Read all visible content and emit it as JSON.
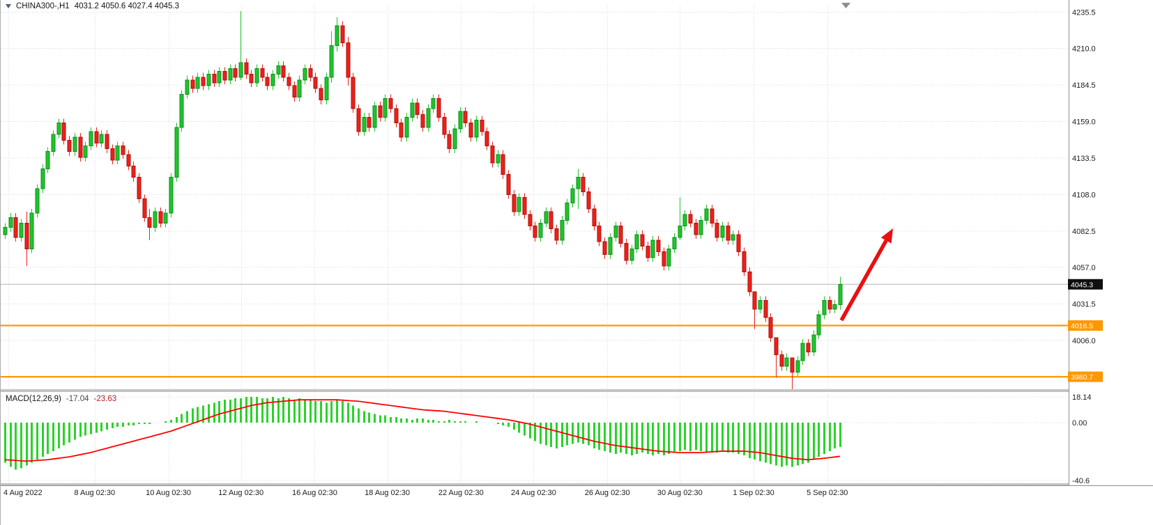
{
  "header": {
    "title": "CHINA300-,H1",
    "ohlc": "4031.2 4050.6 4027.4 4045.3"
  },
  "indicator": {
    "label": "MACD(12,26,9)",
    "macd_value": "-17.04",
    "signal_value": "-23.63"
  },
  "colors": {
    "bull": "#1fc42c",
    "bull_stroke": "#0e8f18",
    "bear": "#ee2019",
    "bear_stroke": "#a8120d",
    "macd_bar": "#2ad32a",
    "signal": "#ff0000",
    "level": "#ff9800",
    "current_badge": "#101010",
    "current_line": "#b4b4b4",
    "arrow": "#e81010",
    "separator": "#c3c3c3"
  },
  "chart_data": {
    "type": "candlestick",
    "title": "CHINA300- H1 with MACD(12,26,9)",
    "legend_position": "none",
    "grid": true,
    "main": {
      "ylim": [
        3972,
        4240
      ],
      "grid_top": 4235.5,
      "grid_step": 25.5,
      "price_ticks": [
        "4235.5",
        "4210.0",
        "4184.5",
        "4159.0",
        "4133.5",
        "4108.0",
        "4082.5",
        "4057.0",
        "4031.5",
        "4006.0"
      ],
      "current_price": "4045.3",
      "open_first": 4080,
      "closes": [
        4085,
        4092,
        4078,
        4088,
        4070,
        4095,
        4112,
        4126,
        4138,
        4150,
        4158,
        4146,
        4138,
        4148,
        4134,
        4142,
        4152,
        4144,
        4150,
        4140,
        4132,
        4142,
        4136,
        4128,
        4120,
        4105,
        4092,
        4085,
        4096,
        4088,
        4095,
        4120,
        4155,
        4178,
        4188,
        4182,
        4190,
        4184,
        4192,
        4186,
        4194,
        4188,
        4196,
        4190,
        4200,
        4192,
        4186,
        4196,
        4190,
        4184,
        4192,
        4198,
        4190,
        4184,
        4176,
        4188,
        4196,
        4190,
        4182,
        4174,
        4190,
        4212,
        4226,
        4214,
        4190,
        4168,
        4152,
        4162,
        4155,
        4170,
        4162,
        4175,
        4168,
        4158,
        4148,
        4162,
        4172,
        4164,
        4155,
        4168,
        4175,
        4162,
        4150,
        4140,
        4154,
        4166,
        4158,
        4148,
        4160,
        4152,
        4142,
        4130,
        4136,
        4122,
        4108,
        4096,
        4106,
        4094,
        4086,
        4078,
        4088,
        4096,
        4084,
        4076,
        4090,
        4102,
        4112,
        4120,
        4110,
        4098,
        4086,
        4075,
        4066,
        4078,
        4086,
        4074,
        4062,
        4070,
        4080,
        4072,
        4064,
        4076,
        4068,
        4058,
        4070,
        4078,
        4086,
        4094,
        4088,
        4080,
        4090,
        4098,
        4088,
        4078,
        4086,
        4076,
        4080,
        4068,
        4054,
        4040,
        4028,
        4034,
        4022,
        4008,
        3996,
        3988,
        3994,
        3984,
        3992,
        4004,
        3998,
        4010,
        4024,
        4034,
        4028,
        4031.2,
        4045.3
      ],
      "wicks": {
        "4": [
          4096,
          4058
        ],
        "27": [
          4098,
          4076
        ],
        "44": [
          4236,
          4188
        ],
        "61": [
          4222,
          4186
        ],
        "62": [
          4232,
          4208
        ],
        "64": [
          4218,
          4184
        ],
        "107": [
          4126,
          4098
        ],
        "126": [
          4106,
          4076
        ],
        "140": [
          4034,
          4014
        ],
        "144": [
          4002,
          3980
        ],
        "147": [
          3992,
          3972
        ],
        "156": [
          4050.6,
          4027.4
        ]
      },
      "levels": [
        {
          "price": 4016.5,
          "label": "4016.5"
        },
        {
          "price": 3980.7,
          "label": "3980.7"
        }
      ]
    },
    "macd": {
      "ylim": [
        -42,
        20
      ],
      "ticks": [
        "18.14",
        "0.00",
        "-40.6"
      ],
      "histogram": [
        -28,
        -31,
        -33,
        -32,
        -30,
        -28,
        -26,
        -24,
        -22,
        -20,
        -18,
        -16,
        -14,
        -12,
        -10,
        -9,
        -8,
        -7,
        -6,
        -5,
        -4,
        -3,
        -3,
        -2,
        -2,
        -1,
        -1,
        -1,
        0,
        0,
        1,
        2,
        4,
        6,
        8,
        10,
        11,
        12,
        13,
        14,
        15,
        16,
        16,
        17,
        17,
        18,
        18,
        18,
        17,
        17,
        18,
        17,
        18,
        17,
        16,
        17,
        16,
        16,
        15,
        15,
        14,
        15,
        16,
        15,
        14,
        12,
        10,
        8,
        7,
        6,
        5,
        5,
        4,
        4,
        3,
        3,
        2,
        3,
        3,
        2,
        2,
        1,
        1,
        2,
        1,
        1,
        1,
        0,
        1,
        0,
        0,
        0,
        -1,
        -2,
        -3,
        -5,
        -7,
        -9,
        -11,
        -13,
        -15,
        -16,
        -17,
        -18,
        -17,
        -16,
        -15,
        -14,
        -15,
        -16,
        -18,
        -19,
        -20,
        -21,
        -22,
        -21,
        -22,
        -23,
        -22,
        -21,
        -22,
        -23,
        -22,
        -23,
        -22,
        -21,
        -20,
        -19,
        -20,
        -19,
        -20,
        -21,
        -20,
        -21,
        -20,
        -21,
        -21,
        -22,
        -23,
        -25,
        -26,
        -27,
        -28,
        -29,
        -30,
        -31,
        -30,
        -31,
        -30,
        -29,
        -28,
        -26,
        -24,
        -22,
        -20,
        -18,
        -17.04
      ],
      "signal_keypoints": [
        [
          0,
          -26
        ],
        [
          4,
          -27
        ],
        [
          8,
          -26
        ],
        [
          12,
          -24
        ],
        [
          16,
          -21
        ],
        [
          20,
          -17
        ],
        [
          24,
          -13
        ],
        [
          28,
          -9
        ],
        [
          31,
          -6
        ],
        [
          34,
          -2
        ],
        [
          37,
          2
        ],
        [
          40,
          6
        ],
        [
          43,
          9
        ],
        [
          46,
          12
        ],
        [
          49,
          14
        ],
        [
          52,
          15
        ],
        [
          55,
          16
        ],
        [
          58,
          16
        ],
        [
          62,
          16
        ],
        [
          66,
          15
        ],
        [
          70,
          13
        ],
        [
          74,
          11
        ],
        [
          78,
          9
        ],
        [
          82,
          8
        ],
        [
          86,
          6
        ],
        [
          90,
          4
        ],
        [
          94,
          2
        ],
        [
          98,
          -1
        ],
        [
          102,
          -5
        ],
        [
          106,
          -9
        ],
        [
          110,
          -13
        ],
        [
          114,
          -16
        ],
        [
          118,
          -18
        ],
        [
          122,
          -20
        ],
        [
          126,
          -21
        ],
        [
          130,
          -21
        ],
        [
          134,
          -20
        ],
        [
          138,
          -20
        ],
        [
          141,
          -21
        ],
        [
          144,
          -23
        ],
        [
          147,
          -25
        ],
        [
          150,
          -26
        ],
        [
          153,
          -25
        ],
        [
          156,
          -23.63
        ]
      ]
    },
    "time_ticks": [
      {
        "label": "4 Aug 2022",
        "pos": 0.007
      },
      {
        "label": "8 Aug 02:30",
        "pos": 0.088
      },
      {
        "label": "10 Aug 02:30",
        "pos": 0.157
      },
      {
        "label": "12 Aug 02:30",
        "pos": 0.225
      },
      {
        "label": "16 Aug 02:30",
        "pos": 0.294
      },
      {
        "label": "18 Aug 02:30",
        "pos": 0.362
      },
      {
        "label": "22 Aug 02:30",
        "pos": 0.431
      },
      {
        "label": "24 Aug 02:30",
        "pos": 0.499
      },
      {
        "label": "26 Aug 02:30",
        "pos": 0.568
      },
      {
        "label": "30 Aug 02:30",
        "pos": 0.636
      },
      {
        "label": "1 Sep 02:30",
        "pos": 0.705
      },
      {
        "label": "5 Sep 02:30",
        "pos": 0.774
      }
    ],
    "annotations": [
      {
        "type": "up-arrow",
        "color": "#e81010",
        "note": "bullish breakout arrow above support 4016.5"
      }
    ]
  }
}
